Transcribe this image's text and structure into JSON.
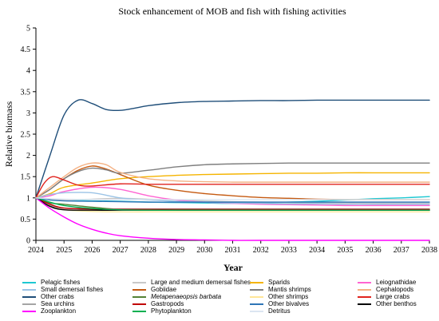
{
  "chart_data": {
    "type": "line",
    "title": "Stock enhancement of MOB and fish with fishing activities",
    "xlabel": "Year",
    "ylabel": "Relative biomass",
    "xlim": [
      2024,
      2038
    ],
    "ylim": [
      0,
      5
    ],
    "x_ticks": [
      "2024",
      "2025",
      "2026",
      "2027",
      "2028",
      "2029",
      "2030",
      "2031",
      "2032",
      "2033",
      "2034",
      "2035",
      "2036",
      "2037",
      "2038"
    ],
    "y_ticks": [
      "0",
      "0.5",
      "1",
      "1.5",
      "2",
      "2.5",
      "3",
      "3.5",
      "4",
      "4.5",
      "5"
    ],
    "grid": false,
    "legend_position": "bottom",
    "series": [
      {
        "name": "Pelagic fishes",
        "color": "#1ec8d2",
        "italic": false,
        "x": [
          2024,
          2024.5,
          2025,
          2026,
          2027,
          2028,
          2029,
          2030,
          2031,
          2032,
          2033,
          2034,
          2035,
          2036,
          2037,
          2038
        ],
        "y": [
          1.0,
          0.96,
          0.94,
          0.93,
          0.92,
          0.9,
          0.89,
          0.88,
          0.87,
          0.88,
          0.9,
          0.92,
          0.95,
          0.98,
          1.0,
          1.03
        ]
      },
      {
        "name": "Large and medium demersal fishes",
        "color": "#c8c8c8",
        "italic": false,
        "x": [
          2024,
          2024.5,
          2025,
          2026,
          2027,
          2028,
          2029,
          2030,
          2031,
          2032,
          2033,
          2034,
          2035,
          2036,
          2037,
          2038
        ],
        "y": [
          1.0,
          0.97,
          0.95,
          0.97,
          0.99,
          0.97,
          0.95,
          0.93,
          0.91,
          0.9,
          0.89,
          0.88,
          0.88,
          0.87,
          0.87,
          0.87
        ]
      },
      {
        "name": "Sparids",
        "color": "#f5b400",
        "italic": false,
        "x": [
          2024,
          2024.5,
          2025,
          2026,
          2027,
          2028,
          2029,
          2030,
          2031,
          2032,
          2033,
          2034,
          2035,
          2036,
          2037,
          2038
        ],
        "y": [
          1.0,
          1.1,
          1.25,
          1.35,
          1.45,
          1.5,
          1.53,
          1.55,
          1.56,
          1.57,
          1.58,
          1.58,
          1.59,
          1.59,
          1.59,
          1.59
        ]
      },
      {
        "name": "Leiognathidae",
        "color": "#ff64d2",
        "italic": false,
        "x": [
          2024,
          2024.5,
          2025,
          2026,
          2027,
          2028,
          2029,
          2030,
          2031,
          2032,
          2033,
          2034,
          2035,
          2036,
          2037,
          2038
        ],
        "y": [
          1.0,
          1.05,
          1.15,
          1.25,
          1.2,
          1.05,
          0.95,
          0.9,
          0.87,
          0.85,
          0.84,
          0.83,
          0.82,
          0.82,
          0.82,
          0.82
        ]
      },
      {
        "name": "Small demersal fishes",
        "color": "#9bc3e6",
        "italic": false,
        "x": [
          2024,
          2024.5,
          2025,
          2026,
          2027,
          2028,
          2029,
          2030,
          2031,
          2032,
          2033,
          2034,
          2035,
          2036,
          2037,
          2038
        ],
        "y": [
          1.0,
          1.08,
          1.12,
          1.12,
          1.0,
          0.95,
          0.92,
          0.9,
          0.88,
          0.87,
          0.86,
          0.86,
          0.85,
          0.85,
          0.85,
          0.85
        ]
      },
      {
        "name": "Gobiidae",
        "color": "#c55a11",
        "italic": false,
        "x": [
          2024,
          2024.5,
          2025,
          2025.5,
          2026,
          2026.5,
          2027,
          2028,
          2029,
          2030,
          2031,
          2032,
          2033,
          2034,
          2035,
          2036,
          2037,
          2038
        ],
        "y": [
          1.0,
          1.2,
          1.45,
          1.65,
          1.75,
          1.68,
          1.55,
          1.3,
          1.18,
          1.1,
          1.05,
          1.01,
          0.99,
          0.97,
          0.96,
          0.96,
          0.96,
          0.96
        ]
      },
      {
        "name": "Mantis shrimps",
        "color": "#7f7f7f",
        "italic": false,
        "x": [
          2024,
          2024.5,
          2025,
          2025.5,
          2026,
          2026.5,
          2027,
          2028,
          2029,
          2030,
          2031,
          2032,
          2033,
          2034,
          2035,
          2036,
          2037,
          2038
        ],
        "y": [
          1.0,
          1.2,
          1.45,
          1.62,
          1.7,
          1.66,
          1.58,
          1.65,
          1.73,
          1.78,
          1.8,
          1.81,
          1.82,
          1.82,
          1.82,
          1.82,
          1.82,
          1.82
        ]
      },
      {
        "name": "Cephalopods",
        "color": "#f4b183",
        "italic": false,
        "x": [
          2024,
          2024.5,
          2025,
          2025.5,
          2026,
          2026.5,
          2027,
          2028,
          2029,
          2030,
          2031,
          2032,
          2033,
          2034,
          2035,
          2036,
          2037,
          2038
        ],
        "y": [
          1.0,
          1.25,
          1.5,
          1.72,
          1.82,
          1.78,
          1.6,
          1.45,
          1.4,
          1.38,
          1.37,
          1.37,
          1.37,
          1.37,
          1.37,
          1.37,
          1.37,
          1.37
        ]
      },
      {
        "name": "Other crabs",
        "color": "#1f4e79",
        "italic": false,
        "x": [
          2024,
          2024.5,
          2025,
          2025.5,
          2026,
          2026.5,
          2027,
          2027.5,
          2028,
          2029,
          2030,
          2031,
          2032,
          2033,
          2034,
          2035,
          2036,
          2037,
          2038
        ],
        "y": [
          1.0,
          2.0,
          2.95,
          3.3,
          3.22,
          3.08,
          3.06,
          3.11,
          3.17,
          3.24,
          3.27,
          3.28,
          3.29,
          3.29,
          3.3,
          3.3,
          3.3,
          3.3,
          3.3
        ]
      },
      {
        "name": "Metapenaeopsis barbata",
        "color": "#548235",
        "italic": true,
        "x": [
          2024,
          2024.5,
          2025,
          2026,
          2027,
          2028,
          2029,
          2030,
          2031,
          2032,
          2033,
          2034,
          2035,
          2036,
          2037,
          2038
        ],
        "y": [
          1.0,
          0.88,
          0.85,
          0.78,
          0.73,
          0.72,
          0.71,
          0.71,
          0.71,
          0.71,
          0.71,
          0.71,
          0.71,
          0.71,
          0.71,
          0.71
        ]
      },
      {
        "name": "Other shrimps",
        "color": "#ffe699",
        "italic": false,
        "x": [
          2024,
          2024.5,
          2025,
          2026,
          2027,
          2028,
          2029,
          2030,
          2031,
          2032,
          2033,
          2034,
          2035,
          2036,
          2037,
          2038
        ],
        "y": [
          1.0,
          0.8,
          0.72,
          0.68,
          0.67,
          0.67,
          0.67,
          0.67,
          0.67,
          0.67,
          0.67,
          0.67,
          0.67,
          0.67,
          0.67,
          0.67
        ]
      },
      {
        "name": "Large crabs",
        "color": "#e1231e",
        "italic": false,
        "x": [
          2024,
          2024.3,
          2024.6,
          2025,
          2025.5,
          2026,
          2027,
          2028,
          2029,
          2030,
          2031,
          2032,
          2033,
          2034,
          2035,
          2036,
          2037,
          2038
        ],
        "y": [
          1.0,
          1.35,
          1.5,
          1.42,
          1.3,
          1.28,
          1.33,
          1.32,
          1.32,
          1.32,
          1.32,
          1.32,
          1.32,
          1.32,
          1.32,
          1.32,
          1.32,
          1.32
        ]
      },
      {
        "name": "Sea urchins",
        "color": "#a5a5a5",
        "italic": false,
        "x": [
          2024,
          2024.5,
          2025,
          2026,
          2027,
          2028,
          2029,
          2030,
          2031,
          2032,
          2033,
          2034,
          2035,
          2036,
          2037,
          2038
        ],
        "y": [
          1.0,
          0.82,
          0.76,
          0.74,
          0.74,
          0.74,
          0.74,
          0.74,
          0.74,
          0.74,
          0.74,
          0.74,
          0.74,
          0.74,
          0.74,
          0.74
        ]
      },
      {
        "name": "Gastropods",
        "color": "#c00000",
        "italic": false,
        "x": [
          2024,
          2024.5,
          2025,
          2026,
          2027,
          2028,
          2029,
          2030,
          2031,
          2032,
          2033,
          2034,
          2035,
          2036,
          2037,
          2038
        ],
        "y": [
          1.0,
          0.85,
          0.76,
          0.74,
          0.73,
          0.73,
          0.73,
          0.73,
          0.73,
          0.73,
          0.73,
          0.73,
          0.73,
          0.73,
          0.73,
          0.73
        ]
      },
      {
        "name": "Other bivalves",
        "color": "#2e75b6",
        "italic": false,
        "x": [
          2024,
          2024.5,
          2025,
          2026,
          2027,
          2028,
          2029,
          2030,
          2031,
          2032,
          2033,
          2034,
          2035,
          2036,
          2037,
          2038
        ],
        "y": [
          1.0,
          0.95,
          0.93,
          0.92,
          0.91,
          0.9,
          0.9,
          0.9,
          0.9,
          0.9,
          0.9,
          0.9,
          0.9,
          0.9,
          0.9,
          0.9
        ]
      },
      {
        "name": "Other benthos",
        "color": "#000000",
        "italic": false,
        "x": [
          2024,
          2024.5,
          2025,
          2026,
          2027,
          2028,
          2029,
          2030,
          2031,
          2032,
          2033,
          2034,
          2035,
          2036,
          2037,
          2038
        ],
        "y": [
          1.0,
          0.8,
          0.72,
          0.71,
          0.71,
          0.71,
          0.71,
          0.71,
          0.71,
          0.71,
          0.71,
          0.71,
          0.71,
          0.71,
          0.71,
          0.71
        ]
      },
      {
        "name": "Zooplankton",
        "color": "#ff00ff",
        "italic": false,
        "x": [
          2024,
          2024.5,
          2025,
          2025.5,
          2026,
          2026.5,
          2027,
          2028,
          2029,
          2030,
          2031,
          2032,
          2034,
          2036,
          2038
        ],
        "y": [
          1.0,
          0.75,
          0.55,
          0.38,
          0.26,
          0.17,
          0.11,
          0.05,
          0.02,
          0.01,
          0.0,
          0.0,
          0.0,
          0.0,
          0.0
        ]
      },
      {
        "name": "Phytoplankton",
        "color": "#00b050",
        "italic": false,
        "x": [
          2024,
          2024.5,
          2025,
          2026,
          2027,
          2028,
          2029,
          2030,
          2031,
          2032,
          2033,
          2034,
          2035,
          2036,
          2037,
          2038
        ],
        "y": [
          1.0,
          0.9,
          0.82,
          0.75,
          0.72,
          0.71,
          0.71,
          0.71,
          0.71,
          0.71,
          0.71,
          0.71,
          0.71,
          0.71,
          0.71,
          0.71
        ]
      },
      {
        "name": "Detritus",
        "color": "#dbe5f1",
        "italic": false,
        "x": [
          2024,
          2024.5,
          2025,
          2026,
          2027,
          2028,
          2029,
          2030,
          2031,
          2032,
          2033,
          2034,
          2035,
          2036,
          2037,
          2038
        ],
        "y": [
          1.0,
          0.98,
          0.97,
          0.96,
          0.96,
          0.96,
          0.96,
          0.96,
          0.96,
          0.96,
          0.96,
          0.96,
          0.96,
          0.96,
          0.96,
          0.96
        ]
      }
    ]
  }
}
